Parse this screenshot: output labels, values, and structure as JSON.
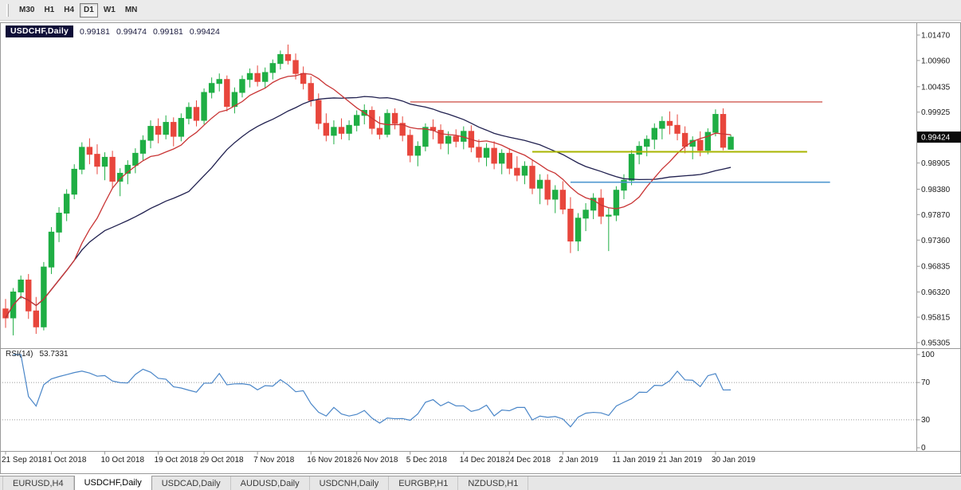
{
  "toolbar": {
    "timeframes": [
      "M30",
      "H1",
      "H4",
      "D1",
      "W1",
      "MN"
    ],
    "active_timeframe": "D1"
  },
  "chart": {
    "symbol_label": "USDCHF,Daily",
    "ohlc": {
      "open": "0.99181",
      "high": "0.99474",
      "low": "0.99181",
      "close": "0.99424"
    },
    "price_ticks": [
      "1.01470",
      "1.00960",
      "1.00435",
      "0.99925",
      "0.98905",
      "0.98380",
      "0.97870",
      "0.97360",
      "0.96835",
      "0.96320",
      "0.95815",
      "0.95305"
    ],
    "price_marker": {
      "value": "0.99424",
      "bg": "#0a0a0a",
      "text_color": "#ffffff"
    },
    "colors": {
      "up": "#1fae44",
      "down": "#e8463c",
      "background": "#ffffff",
      "frame": "#9a9a9a",
      "text": "#1c1c1c"
    },
    "hlines": [
      {
        "name": "resistance-hline",
        "price": 1.0013,
        "from_bar": 53,
        "to_bar": 107,
        "color": "#d05a52",
        "width": 1.4
      },
      {
        "name": "mid-hline",
        "price": 0.9913,
        "from_bar": 69,
        "to_bar": 105,
        "color": "#a8b400",
        "width": 2
      },
      {
        "name": "support-hline",
        "price": 0.9852,
        "from_bar": 74,
        "to_bar": 108,
        "color": "#4f97d0",
        "width": 1.6
      }
    ],
    "moving_averages": [
      {
        "name": "ma-fast",
        "period": 10,
        "color": "#c93535"
      },
      {
        "name": "ma-slow",
        "period": 25,
        "color": "#20204f"
      }
    ]
  },
  "rsi": {
    "label": "RSI(14)",
    "value": "53.7331",
    "period": 14,
    "color": "#4a86c8",
    "scale_labels": [
      "100",
      "70",
      "30",
      "0"
    ],
    "dashed_levels": [
      70,
      30
    ]
  },
  "tabs": [
    "EURUSD,H4",
    "USDCHF,Daily",
    "USDCAD,Daily",
    "AUDUSD,Daily",
    "USDCNH,Daily",
    "EURGBP,H1",
    "NZDUSD,H1"
  ],
  "active_tab": "USDCHF,Daily",
  "chart_data": {
    "type": "candlestick",
    "symbol": "USDCHF",
    "timeframe": "Daily",
    "last_bar_ohlc": {
      "open": 0.99181,
      "high": 0.99474,
      "low": 0.99181,
      "close": 0.99424
    },
    "price_axis": {
      "max": 1.0147,
      "min": 0.95305
    },
    "date_labels": [
      {
        "label": "21 Sep 2018",
        "bar": 0
      },
      {
        "label": "1 Oct 2018",
        "bar": 6
      },
      {
        "label": "10 Oct 2018",
        "bar": 13
      },
      {
        "label": "19 Oct 2018",
        "bar": 20
      },
      {
        "label": "29 Oct 2018",
        "bar": 26
      },
      {
        "label": "7 Nov 2018",
        "bar": 33
      },
      {
        "label": "16 Nov 2018",
        "bar": 40
      },
      {
        "label": "26 Nov 2018",
        "bar": 46
      },
      {
        "label": "5 Dec 2018",
        "bar": 53
      },
      {
        "label": "14 Dec 2018",
        "bar": 60
      },
      {
        "label": "24 Dec 2018",
        "bar": 66
      },
      {
        "label": "2 Jan 2019",
        "bar": 73
      },
      {
        "label": "11 Jan 2019",
        "bar": 80
      },
      {
        "label": "21 Jan 2019",
        "bar": 86
      },
      {
        "label": "30 Jan 2019",
        "bar": 93
      }
    ],
    "candles": [
      [
        0.9598,
        0.9618,
        0.956,
        0.958
      ],
      [
        0.958,
        0.964,
        0.9545,
        0.9632
      ],
      [
        0.9632,
        0.9665,
        0.9618,
        0.9656
      ],
      [
        0.9656,
        0.9668,
        0.9578,
        0.9594
      ],
      [
        0.9594,
        0.9622,
        0.9548,
        0.9562
      ],
      [
        0.9562,
        0.9692,
        0.9555,
        0.9682
      ],
      [
        0.9682,
        0.9762,
        0.9668,
        0.9752
      ],
      [
        0.9752,
        0.9802,
        0.9732,
        0.979
      ],
      [
        0.979,
        0.9838,
        0.9774,
        0.9828
      ],
      [
        0.9828,
        0.9888,
        0.9818,
        0.9878
      ],
      [
        0.9878,
        0.9932,
        0.9868,
        0.9922
      ],
      [
        0.9922,
        0.994,
        0.9888,
        0.9908
      ],
      [
        0.9908,
        0.9928,
        0.9868,
        0.9884
      ],
      [
        0.9884,
        0.9912,
        0.9856,
        0.9902
      ],
      [
        0.9902,
        0.9915,
        0.984,
        0.9854
      ],
      [
        0.9854,
        0.988,
        0.9824,
        0.987
      ],
      [
        0.987,
        0.9896,
        0.9848,
        0.9886
      ],
      [
        0.9886,
        0.992,
        0.987,
        0.991
      ],
      [
        0.991,
        0.9946,
        0.9896,
        0.9936
      ],
      [
        0.9936,
        0.9976,
        0.992,
        0.9964
      ],
      [
        0.9964,
        0.998,
        0.993,
        0.9948
      ],
      [
        0.9948,
        0.9986,
        0.9938,
        0.9972
      ],
      [
        0.9972,
        0.9982,
        0.9924,
        0.9944
      ],
      [
        0.9944,
        0.999,
        0.9934,
        0.998
      ],
      [
        0.998,
        1.0012,
        0.9968,
        1.0002
      ],
      [
        1.0002,
        1.0016,
        0.9964,
        0.9976
      ],
      [
        0.9976,
        1.004,
        0.9968,
        1.0032
      ],
      [
        1.0032,
        1.0062,
        1.002,
        1.005
      ],
      [
        1.005,
        1.007,
        1.0034,
        1.0058
      ],
      [
        1.0058,
        1.0066,
        0.9994,
        1.0004
      ],
      [
        1.0004,
        1.0042,
        0.999,
        1.0032
      ],
      [
        1.0032,
        1.0066,
        1.0022,
        1.0058
      ],
      [
        1.0058,
        1.008,
        1.0042,
        1.007
      ],
      [
        1.007,
        1.0086,
        1.0044,
        1.0054
      ],
      [
        1.0054,
        1.0082,
        1.004,
        1.0072
      ],
      [
        1.0072,
        1.0098,
        1.0058,
        1.009
      ],
      [
        1.009,
        1.0116,
        1.0078,
        1.0108
      ],
      [
        1.0108,
        1.0128,
        1.0088,
        1.0096
      ],
      [
        1.0096,
        1.011,
        1.0058,
        1.007
      ],
      [
        1.007,
        1.0084,
        1.0038,
        1.005
      ],
      [
        1.005,
        1.0064,
        1.0004,
        1.0016
      ],
      [
        1.0016,
        1.003,
        0.9958,
        0.997
      ],
      [
        0.997,
        0.999,
        0.9934,
        0.9946
      ],
      [
        0.9946,
        0.9976,
        0.9928,
        0.9962
      ],
      [
        0.9962,
        0.998,
        0.9938,
        0.995
      ],
      [
        0.995,
        0.9976,
        0.9936,
        0.9966
      ],
      [
        0.9966,
        0.9996,
        0.9954,
        0.9986
      ],
      [
        0.9986,
        1.0008,
        0.9968,
        0.9996
      ],
      [
        0.9996,
        1.0004,
        0.9948,
        0.996
      ],
      [
        0.996,
        0.9984,
        0.9938,
        0.9948
      ],
      [
        0.9948,
        0.9998,
        0.9942,
        0.999
      ],
      [
        0.999,
        1.0,
        0.9958,
        0.997
      ],
      [
        0.997,
        0.9984,
        0.9934,
        0.9946
      ],
      [
        0.9946,
        0.9958,
        0.9892,
        0.9906
      ],
      [
        0.9906,
        0.9934,
        0.9884,
        0.9924
      ],
      [
        0.9924,
        0.997,
        0.9914,
        0.9962
      ],
      [
        0.9962,
        0.9978,
        0.9938,
        0.9956
      ],
      [
        0.9956,
        0.9968,
        0.9918,
        0.993
      ],
      [
        0.993,
        0.9954,
        0.9908,
        0.9944
      ],
      [
        0.9944,
        0.9958,
        0.9922,
        0.9934
      ],
      [
        0.9934,
        0.9964,
        0.9918,
        0.9954
      ],
      [
        0.9954,
        0.9966,
        0.9912,
        0.9922
      ],
      [
        0.9922,
        0.9938,
        0.9892,
        0.9902
      ],
      [
        0.9902,
        0.993,
        0.9884,
        0.992
      ],
      [
        0.992,
        0.9934,
        0.9878,
        0.989
      ],
      [
        0.989,
        0.9918,
        0.9868,
        0.991
      ],
      [
        0.991,
        0.992,
        0.9868,
        0.988
      ],
      [
        0.988,
        0.9904,
        0.9854,
        0.9866
      ],
      [
        0.9866,
        0.9894,
        0.9848,
        0.9884
      ],
      [
        0.9884,
        0.9896,
        0.9828,
        0.984
      ],
      [
        0.984,
        0.9868,
        0.9808,
        0.9856
      ],
      [
        0.9856,
        0.9868,
        0.9806,
        0.9818
      ],
      [
        0.9818,
        0.9846,
        0.979,
        0.9836
      ],
      [
        0.9836,
        0.9854,
        0.9788,
        0.9798
      ],
      [
        0.9798,
        0.9822,
        0.971,
        0.9734
      ],
      [
        0.9734,
        0.979,
        0.9714,
        0.978
      ],
      [
        0.978,
        0.981,
        0.9754,
        0.9796
      ],
      [
        0.9796,
        0.983,
        0.9778,
        0.982
      ],
      [
        0.982,
        0.9838,
        0.9768,
        0.9784
      ],
      [
        0.9784,
        0.98,
        0.9714,
        0.9786
      ],
      [
        0.9786,
        0.9844,
        0.9774,
        0.9836
      ],
      [
        0.9836,
        0.9868,
        0.9818,
        0.9856
      ],
      [
        0.9856,
        0.9916,
        0.9846,
        0.9908
      ],
      [
        0.9908,
        0.9934,
        0.9888,
        0.9924
      ],
      [
        0.9924,
        0.9946,
        0.9904,
        0.9938
      ],
      [
        0.9938,
        0.997,
        0.9918,
        0.996
      ],
      [
        0.996,
        0.9984,
        0.9938,
        0.9974
      ],
      [
        0.9974,
        0.9994,
        0.9948,
        0.9966
      ],
      [
        0.9966,
        0.9988,
        0.9936,
        0.995
      ],
      [
        0.995,
        0.9964,
        0.991,
        0.9924
      ],
      [
        0.9924,
        0.9944,
        0.9898,
        0.9936
      ],
      [
        0.9936,
        0.9954,
        0.9904,
        0.9916
      ],
      [
        0.9916,
        0.996,
        0.9908,
        0.9952
      ],
      [
        0.9952,
        0.9998,
        0.9944,
        0.9988
      ],
      [
        0.9988,
        1.0,
        0.9916,
        0.9922
      ],
      [
        0.99181,
        0.99474,
        0.99181,
        0.99424
      ]
    ]
  }
}
